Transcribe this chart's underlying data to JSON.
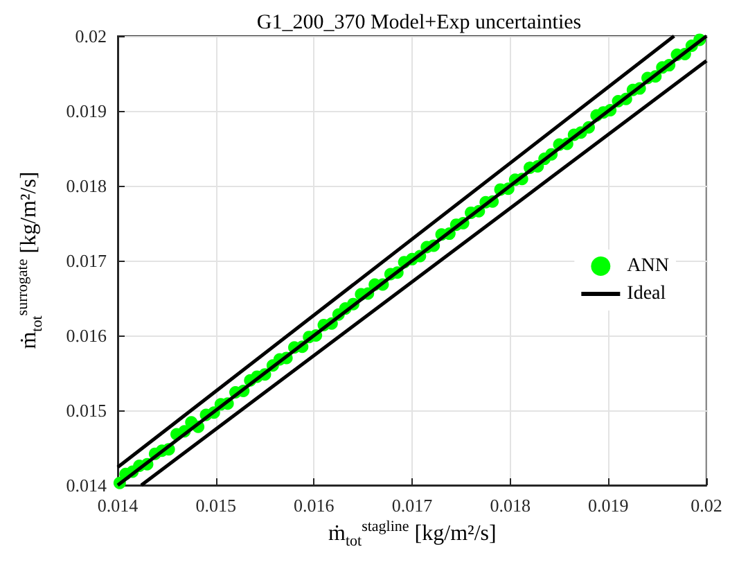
{
  "chart_data": {
    "type": "scatter",
    "title": "G1_200_370 Model+Exp uncertainties",
    "xlabel": "ṁ$_{tot}$$^{stagline}$ [kg/m²/s]",
    "ylabel": "ṁ$_{tot}$$^{surrogate}$ [kg/m²/s]",
    "xlim": [
      0.014,
      0.02
    ],
    "xticks": [
      0.014,
      0.015,
      0.016,
      0.017,
      0.018,
      0.019,
      0.02
    ],
    "ylim": [
      0.014,
      0.02
    ],
    "yticks": [
      0.014,
      0.015,
      0.016,
      0.017,
      0.018,
      0.019,
      0.02
    ],
    "grid": true,
    "legend": "right",
    "series": [
      {
        "name": "ANN",
        "marker": "circle",
        "color": "#00ff00",
        "x": [
          0.01402,
          0.01408,
          0.01415,
          0.01422,
          0.0143,
          0.01438,
          0.01445,
          0.01452,
          0.0146,
          0.01468,
          0.01475,
          0.01482,
          0.0149,
          0.01498,
          0.01505,
          0.01512,
          0.0152,
          0.01528,
          0.01535,
          0.01542,
          0.0155,
          0.01558,
          0.01565,
          0.01572,
          0.0158,
          0.01588,
          0.01595,
          0.01602,
          0.0161,
          0.01618,
          0.01625,
          0.01632,
          0.0164,
          0.01648,
          0.01655,
          0.01662,
          0.0167,
          0.01678,
          0.01685,
          0.01692,
          0.017,
          0.01708,
          0.01715,
          0.01722,
          0.0173,
          0.01738,
          0.01745,
          0.01752,
          0.0176,
          0.01768,
          0.01775,
          0.01782,
          0.0179,
          0.01798,
          0.01805,
          0.01812,
          0.0182,
          0.01828,
          0.01835,
          0.01842,
          0.0185,
          0.01858,
          0.01865,
          0.01872,
          0.0188,
          0.01888,
          0.01895,
          0.01902,
          0.0191,
          0.01918,
          0.01925,
          0.01932,
          0.0194,
          0.01948,
          0.01955,
          0.01962,
          0.0197,
          0.01978,
          0.01985,
          0.01993
        ],
        "values": [
          0.01403,
          0.01415,
          0.01418,
          0.01426,
          0.01428,
          0.01442,
          0.01446,
          0.01448,
          0.01468,
          0.01472,
          0.01484,
          0.01478,
          0.01494,
          0.01497,
          0.01508,
          0.01509,
          0.01524,
          0.01526,
          0.0154,
          0.01545,
          0.01548,
          0.0156,
          0.01568,
          0.0157,
          0.01584,
          0.01585,
          0.01598,
          0.016,
          0.01614,
          0.01616,
          0.01628,
          0.01636,
          0.01642,
          0.01655,
          0.01656,
          0.01668,
          0.01668,
          0.01682,
          0.01684,
          0.01698,
          0.01702,
          0.01706,
          0.01718,
          0.0172,
          0.01735,
          0.01736,
          0.01748,
          0.0175,
          0.01764,
          0.01766,
          0.01778,
          0.01779,
          0.01795,
          0.01796,
          0.01808,
          0.01809,
          0.01824,
          0.01826,
          0.01836,
          0.01842,
          0.01855,
          0.01856,
          0.01868,
          0.01871,
          0.01878,
          0.01894,
          0.01898,
          0.01901,
          0.01913,
          0.01916,
          0.01928,
          0.0193,
          0.01944,
          0.01946,
          0.01958,
          0.01961,
          0.01975,
          0.01976,
          0.01987,
          0.01995
        ]
      },
      {
        "name": "Ideal",
        "type": "line",
        "marker": "none",
        "color": "#000000",
        "x": [
          0.014,
          0.02
        ],
        "values": [
          0.014,
          0.02
        ]
      },
      {
        "type": "line",
        "marker": "none",
        "color": "#000000",
        "x": [
          0.014,
          0.01967
        ],
        "values": [
          0.01424,
          0.02
        ]
      },
      {
        "type": "line",
        "marker": "none",
        "color": "#000000",
        "x": [
          0.01424,
          0.02
        ],
        "values": [
          0.014,
          0.01967
        ]
      }
    ]
  }
}
